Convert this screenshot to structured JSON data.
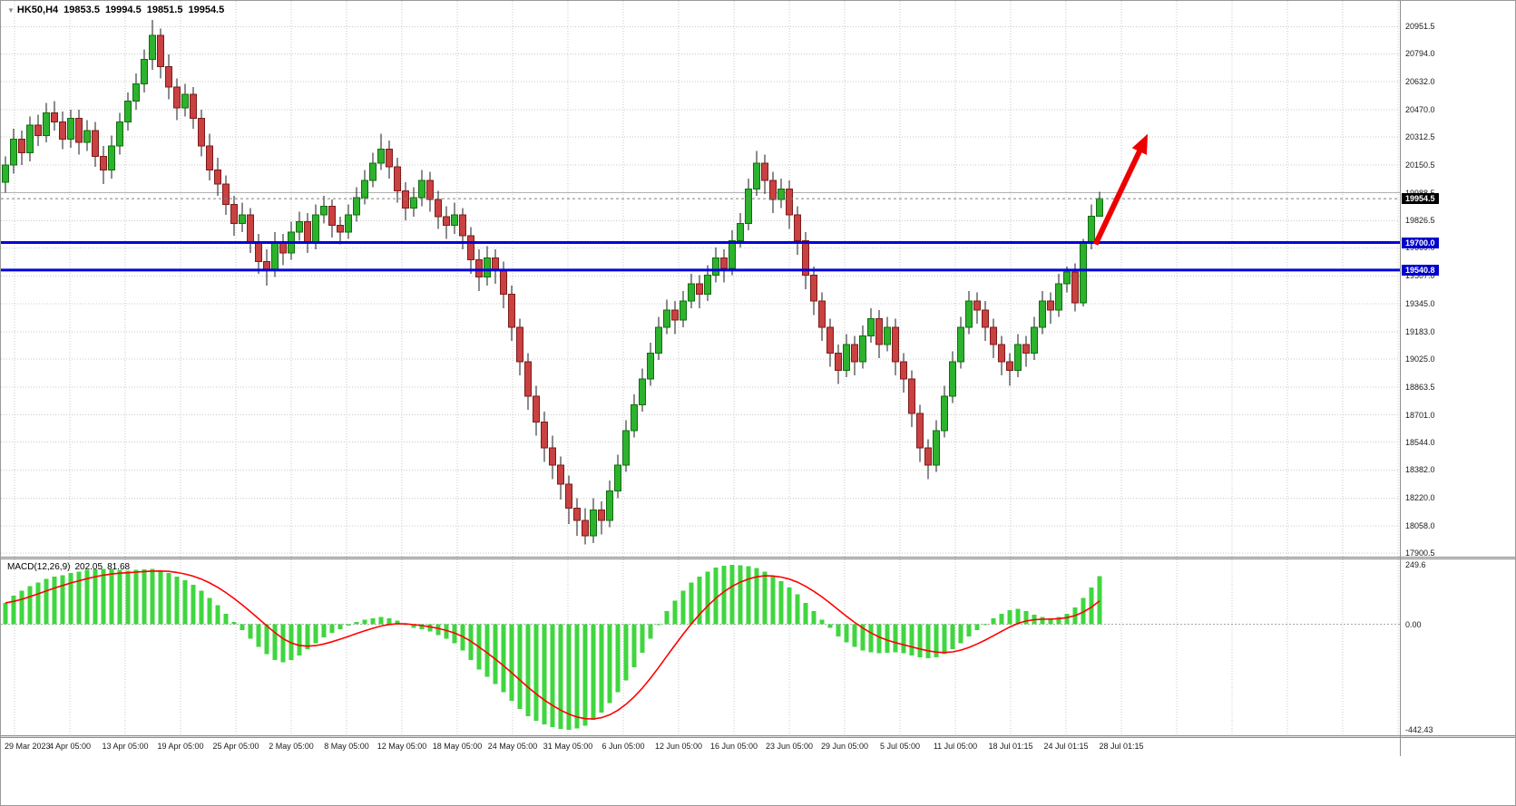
{
  "window": {
    "symbol_info": {
      "symbol": "HK50,H4",
      "open": "19853.5",
      "high": "19994.5",
      "low": "19851.5",
      "close": "19954.5"
    },
    "macd_info": {
      "label": "MACD(12,26,9)",
      "macd_value": "202.05",
      "signal_value": "81.68"
    }
  },
  "colors": {
    "background": "#ffffff",
    "grid": "#c9c9c9",
    "solid_grid": "#b2b2b2",
    "wick": "#1a1a1a",
    "up": "#2db22d",
    "up_border": "#0f6e0f",
    "down": "#c94141",
    "down_border": "#7c1c1c",
    "level_line": "#0000dd",
    "current_price_line": "#808080",
    "badge_current_bg": "#000000",
    "badge_level_bg": "#0000cc",
    "histogram": "#3fd63f",
    "zero_line": "#a8a8a8",
    "signal": "#ff0000",
    "arrow": "#ee0000"
  },
  "chart_data": [
    {
      "type": "candlestick",
      "title": "HK50 H4",
      "price_range": [
        17880,
        21100
      ],
      "current_price": 19954.5,
      "price_axis_ticks": [
        20951.5,
        20794.0,
        20632.0,
        20470.0,
        20312.5,
        20150.5,
        19988.5,
        19826.5,
        19669.0,
        19507.0,
        19345.0,
        19183.0,
        19025.0,
        18863.5,
        18701.0,
        18544.0,
        18382.0,
        18220.0,
        18058.0,
        17900.5
      ],
      "horizontal_lines": [
        {
          "price": 19700.0,
          "label": "19700.0"
        },
        {
          "price": 19540.8,
          "label": "19540.8"
        }
      ],
      "arrow": {
        "from_candle": 133.5,
        "from_price": 19690,
        "to_candle": 139.5,
        "to_price": 20290,
        "direction": "up"
      },
      "x_labels": [
        "29 Mar 2023",
        "4 Apr 05:00",
        "13 Apr 05:00",
        "19 Apr 05:00",
        "25 Apr 05:00",
        "2 May 05:00",
        "8 May 05:00",
        "12 May 05:00",
        "18 May 05:00",
        "24 May 05:00",
        "31 May 05:00",
        "6 Jun 05:00",
        "12 Jun 05:00",
        "16 Jun 05:00",
        "23 Jun 05:00",
        "29 Jun 05:00",
        "5 Jul 05:00",
        "11 Jul 05:00",
        "18 Jul 01:15",
        "24 Jul 01:15",
        "28 Jul 01:15"
      ],
      "candles": [
        [
          20050,
          20200,
          19990,
          20150
        ],
        [
          20150,
          20360,
          20100,
          20300
        ],
        [
          20300,
          20350,
          20150,
          20220
        ],
        [
          20220,
          20430,
          20170,
          20380
        ],
        [
          20380,
          20440,
          20260,
          20320
        ],
        [
          20320,
          20510,
          20280,
          20450
        ],
        [
          20450,
          20520,
          20350,
          20400
        ],
        [
          20400,
          20460,
          20240,
          20300
        ],
        [
          20300,
          20470,
          20250,
          20420
        ],
        [
          20420,
          20470,
          20210,
          20280
        ],
        [
          20280,
          20410,
          20230,
          20350
        ],
        [
          20350,
          20400,
          20140,
          20200
        ],
        [
          20200,
          20260,
          20040,
          20120
        ],
        [
          20120,
          20320,
          20070,
          20260
        ],
        [
          20260,
          20450,
          20210,
          20400
        ],
        [
          20400,
          20570,
          20350,
          20520
        ],
        [
          20520,
          20680,
          20470,
          20620
        ],
        [
          20620,
          20820,
          20570,
          20760
        ],
        [
          20760,
          20990,
          20700,
          20900
        ],
        [
          20900,
          20940,
          20650,
          20720
        ],
        [
          20720,
          20790,
          20530,
          20600
        ],
        [
          20600,
          20650,
          20410,
          20480
        ],
        [
          20480,
          20620,
          20430,
          20560
        ],
        [
          20560,
          20600,
          20360,
          20420
        ],
        [
          20420,
          20470,
          20200,
          20260
        ],
        [
          20260,
          20330,
          20060,
          20120
        ],
        [
          20120,
          20190,
          19970,
          20040
        ],
        [
          20040,
          20090,
          19860,
          19920
        ],
        [
          19920,
          19970,
          19740,
          19810
        ],
        [
          19810,
          19930,
          19760,
          19860
        ],
        [
          19860,
          19900,
          19640,
          19700
        ],
        [
          19700,
          19750,
          19520,
          19590
        ],
        [
          19590,
          19660,
          19450,
          19540
        ],
        [
          19540,
          19760,
          19500,
          19700
        ],
        [
          19700,
          19750,
          19570,
          19640
        ],
        [
          19640,
          19820,
          19600,
          19760
        ],
        [
          19760,
          19880,
          19710,
          19820
        ],
        [
          19820,
          19870,
          19640,
          19700
        ],
        [
          19700,
          19920,
          19660,
          19860
        ],
        [
          19860,
          19970,
          19810,
          19910
        ],
        [
          19910,
          19950,
          19730,
          19800
        ],
        [
          19800,
          19850,
          19690,
          19760
        ],
        [
          19760,
          19920,
          19720,
          19860
        ],
        [
          19860,
          20020,
          19820,
          19960
        ],
        [
          19960,
          20120,
          19920,
          20060
        ],
        [
          20060,
          20220,
          20020,
          20160
        ],
        [
          20160,
          20330,
          20120,
          20240
        ],
        [
          20240,
          20290,
          20070,
          20140
        ],
        [
          20140,
          20190,
          19930,
          20000
        ],
        [
          20000,
          20050,
          19830,
          19900
        ],
        [
          19900,
          20020,
          19850,
          19960
        ],
        [
          19960,
          20120,
          19910,
          20060
        ],
        [
          20060,
          20110,
          19880,
          19950
        ],
        [
          19950,
          20000,
          19780,
          19850
        ],
        [
          19850,
          19910,
          19720,
          19800
        ],
        [
          19800,
          19930,
          19750,
          19860
        ],
        [
          19860,
          19900,
          19660,
          19740
        ],
        [
          19740,
          19790,
          19520,
          19600
        ],
        [
          19600,
          19660,
          19420,
          19500
        ],
        [
          19500,
          19680,
          19450,
          19610
        ],
        [
          19610,
          19660,
          19460,
          19540
        ],
        [
          19540,
          19590,
          19320,
          19400
        ],
        [
          19400,
          19450,
          19130,
          19210
        ],
        [
          19210,
          19260,
          18930,
          19010
        ],
        [
          19010,
          19060,
          18730,
          18810
        ],
        [
          18810,
          18870,
          18580,
          18660
        ],
        [
          18660,
          18720,
          18430,
          18510
        ],
        [
          18510,
          18580,
          18330,
          18410
        ],
        [
          18410,
          18460,
          18210,
          18300
        ],
        [
          18300,
          18350,
          18070,
          18160
        ],
        [
          18160,
          18220,
          18000,
          18090
        ],
        [
          18090,
          18160,
          17950,
          18000
        ],
        [
          18000,
          18220,
          17960,
          18150
        ],
        [
          18150,
          18200,
          18010,
          18090
        ],
        [
          18090,
          18320,
          18050,
          18260
        ],
        [
          18260,
          18470,
          18220,
          18410
        ],
        [
          18410,
          18670,
          18370,
          18610
        ],
        [
          18610,
          18820,
          18570,
          18760
        ],
        [
          18760,
          18970,
          18720,
          18910
        ],
        [
          18910,
          19120,
          18870,
          19060
        ],
        [
          19060,
          19270,
          19020,
          19210
        ],
        [
          19210,
          19370,
          19170,
          19310
        ],
        [
          19310,
          19360,
          19170,
          19250
        ],
        [
          19250,
          19420,
          19210,
          19360
        ],
        [
          19360,
          19520,
          19320,
          19460
        ],
        [
          19460,
          19510,
          19320,
          19400
        ],
        [
          19400,
          19570,
          19360,
          19510
        ],
        [
          19510,
          19670,
          19470,
          19610
        ],
        [
          19610,
          19660,
          19470,
          19550
        ],
        [
          19550,
          19770,
          19510,
          19710
        ],
        [
          19710,
          19870,
          19670,
          19810
        ],
        [
          19810,
          20070,
          19770,
          20010
        ],
        [
          20010,
          20230,
          19970,
          20160
        ],
        [
          20160,
          20210,
          19980,
          20060
        ],
        [
          20060,
          20110,
          19870,
          19950
        ],
        [
          19950,
          20070,
          19900,
          20010
        ],
        [
          20010,
          20060,
          19780,
          19860
        ],
        [
          19860,
          19910,
          19630,
          19710
        ],
        [
          19710,
          19760,
          19430,
          19510
        ],
        [
          19510,
          19560,
          19280,
          19360
        ],
        [
          19360,
          19410,
          19130,
          19210
        ],
        [
          19210,
          19260,
          18980,
          19060
        ],
        [
          19060,
          19110,
          18880,
          18960
        ],
        [
          18960,
          19170,
          18920,
          19110
        ],
        [
          19110,
          19160,
          18930,
          19010
        ],
        [
          19010,
          19220,
          18970,
          19160
        ],
        [
          19160,
          19320,
          19120,
          19260
        ],
        [
          19260,
          19310,
          19030,
          19110
        ],
        [
          19110,
          19270,
          19070,
          19210
        ],
        [
          19210,
          19260,
          18930,
          19010
        ],
        [
          19010,
          19060,
          18830,
          18910
        ],
        [
          18910,
          18960,
          18630,
          18710
        ],
        [
          18710,
          18760,
          18430,
          18510
        ],
        [
          18510,
          18560,
          18330,
          18410
        ],
        [
          18410,
          18670,
          18370,
          18610
        ],
        [
          18610,
          18870,
          18570,
          18810
        ],
        [
          18810,
          19070,
          18770,
          19010
        ],
        [
          19010,
          19270,
          18970,
          19210
        ],
        [
          19210,
          19420,
          19170,
          19360
        ],
        [
          19360,
          19410,
          19230,
          19310
        ],
        [
          19310,
          19360,
          19130,
          19210
        ],
        [
          19210,
          19260,
          19030,
          19110
        ],
        [
          19110,
          19160,
          18930,
          19010
        ],
        [
          19010,
          19060,
          18870,
          18960
        ],
        [
          18960,
          19170,
          18920,
          19110
        ],
        [
          19110,
          19160,
          18980,
          19060
        ],
        [
          19060,
          19270,
          19020,
          19210
        ],
        [
          19210,
          19420,
          19170,
          19360
        ],
        [
          19360,
          19410,
          19230,
          19310
        ],
        [
          19310,
          19520,
          19270,
          19460
        ],
        [
          19460,
          19560,
          19410,
          19530
        ],
        [
          19530,
          19580,
          19300,
          19350
        ],
        [
          19350,
          19720,
          19330,
          19700
        ],
        [
          19700,
          19920,
          19660,
          19853.5
        ],
        [
          19853.5,
          19994.5,
          19851.5,
          19954.5
        ]
      ]
    },
    {
      "type": "bar",
      "name": "MACD(12,26,9)",
      "value_range": [
        -465,
        272
      ],
      "signal_period": 9,
      "axis_ticks": [
        {
          "value": 249.6,
          "label": "249.6"
        },
        {
          "value": 0,
          "label": "0.00"
        },
        {
          "value": -442.43,
          "label": "-442.43"
        }
      ],
      "values": [
        90,
        120,
        140,
        160,
        175,
        190,
        200,
        205,
        215,
        220,
        228,
        230,
        232,
        230,
        228,
        225,
        228,
        230,
        232,
        225,
        215,
        200,
        185,
        165,
        140,
        110,
        80,
        45,
        10,
        -25,
        -60,
        -95,
        -125,
        -150,
        -160,
        -150,
        -130,
        -105,
        -80,
        -55,
        -35,
        -20,
        -5,
        10,
        20,
        25,
        30,
        25,
        15,
        0,
        -15,
        -20,
        -30,
        -45,
        -60,
        -80,
        -110,
        -150,
        -190,
        -220,
        -250,
        -285,
        -320,
        -355,
        -385,
        -405,
        -420,
        -430,
        -438,
        -442,
        -437,
        -425,
        -400,
        -370,
        -330,
        -285,
        -235,
        -180,
        -120,
        -60,
        0,
        55,
        100,
        140,
        175,
        200,
        220,
        238,
        246,
        249,
        247,
        243,
        235,
        220,
        200,
        180,
        155,
        125,
        90,
        55,
        20,
        -15,
        -50,
        -75,
        -95,
        -110,
        -118,
        -122,
        -120,
        -118,
        -122,
        -130,
        -138,
        -142,
        -138,
        -125,
        -105,
        -80,
        -50,
        -25,
        0,
        25,
        45,
        60,
        65,
        55,
        40,
        30,
        25,
        30,
        45,
        70,
        110,
        155,
        202
      ]
    }
  ]
}
